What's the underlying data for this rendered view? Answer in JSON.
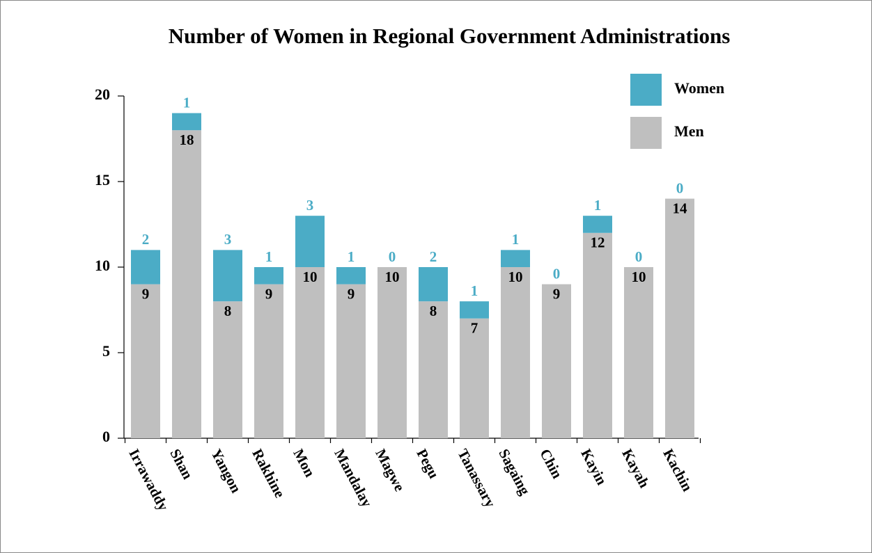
{
  "chart_data": {
    "type": "bar",
    "stacked": true,
    "title": "Number of Women in Regional Government Administrations",
    "categories": [
      "Irrawaddy",
      "Shan",
      "Yangon",
      "Rakhine",
      "Mon",
      "Mandalay",
      "Magwe",
      "Pegu",
      "Tanassary",
      "Sagaing",
      "Chin",
      "Kayin",
      "Kayah",
      "Kachin"
    ],
    "series": [
      {
        "name": "Men",
        "color": "#bfbfbf",
        "values": [
          9,
          18,
          8,
          9,
          10,
          9,
          10,
          8,
          7,
          10,
          9,
          12,
          10,
          14
        ]
      },
      {
        "name": "Women",
        "color": "#4bacc6",
        "values": [
          2,
          1,
          3,
          1,
          3,
          1,
          0,
          2,
          1,
          1,
          0,
          1,
          0,
          0
        ]
      }
    ],
    "ylim": [
      0,
      20
    ],
    "yticks": [
      0,
      5,
      10,
      15,
      20
    ],
    "grid": false,
    "legend": "upper right"
  }
}
